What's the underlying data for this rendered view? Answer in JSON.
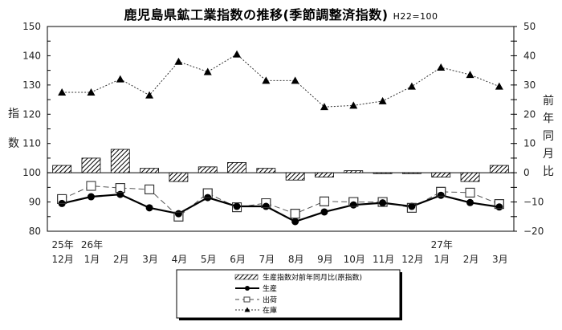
{
  "title": "鹿児島県鉱工業指数の推移(季節調整済指数)",
  "title_note": "H22=100",
  "left_axis_label": [
    "指",
    "数"
  ],
  "right_axis_label": [
    "前",
    "年",
    "同",
    "月",
    "比"
  ],
  "x_year_labels": [
    {
      "index": 0,
      "label": "25年"
    },
    {
      "index": 1,
      "label": "26年"
    },
    {
      "index": 13,
      "label": "27年"
    }
  ],
  "legend": {
    "items": [
      {
        "key": "yoy",
        "label": "生産指数対前年同月比(原指数)"
      },
      {
        "key": "production",
        "label": "生産"
      },
      {
        "key": "shipment",
        "label": "出荷"
      },
      {
        "key": "inventory",
        "label": "在庫"
      }
    ]
  },
  "colors": {
    "line": "#000000",
    "shipment": "#555555",
    "inventory": "#333333",
    "bar_hatch": "#000000"
  },
  "chart_data": {
    "type": "line",
    "title": "鹿児島県鉱工業指数の推移(季節調整済指数) H22=100",
    "categories": [
      "12月",
      "1月",
      "2月",
      "3月",
      "4月",
      "5月",
      "6月",
      "7月",
      "8月",
      "9月",
      "10月",
      "11月",
      "12月",
      "1月",
      "2月",
      "3月"
    ],
    "xlabel": "",
    "ylabel": "指数",
    "y2label": "前年同月比",
    "ylim": [
      80,
      150
    ],
    "y2lim": [
      -20,
      50
    ],
    "yticks": [
      80,
      90,
      100,
      110,
      120,
      130,
      140,
      150
    ],
    "y2ticks": [
      -20,
      -10,
      0,
      10,
      20,
      30,
      40,
      50
    ],
    "grid": false,
    "legend_position": "bottom-center",
    "series": [
      {
        "name": "生産",
        "axis": "left",
        "style": "solid-circle",
        "values": [
          89.5,
          91.8,
          92.6,
          88.0,
          86.0,
          91.5,
          88.5,
          88.5,
          83.3,
          86.6,
          89.0,
          89.7,
          88.5,
          92.3,
          89.8,
          88.3
        ]
      },
      {
        "name": "出荷",
        "axis": "left",
        "style": "dashed-square",
        "values": [
          91.0,
          95.5,
          94.8,
          94.3,
          85.0,
          93.0,
          88.2,
          89.6,
          86.0,
          90.2,
          90.0,
          90.0,
          88.0,
          93.5,
          93.2,
          89.3
        ]
      },
      {
        "name": "在庫",
        "axis": "left",
        "style": "dotted-triangle",
        "values": [
          127.5,
          127.5,
          132.0,
          126.5,
          138.0,
          134.5,
          140.5,
          131.5,
          131.5,
          122.5,
          123.0,
          124.5,
          129.5,
          136.0,
          133.5,
          129.5
        ]
      },
      {
        "name": "生産指数対前年同月比(原指数)",
        "axis": "right",
        "type": "bar",
        "style": "hatched",
        "values": [
          2.5,
          5.0,
          8.0,
          1.5,
          -3.0,
          2.0,
          3.5,
          1.5,
          -2.5,
          -1.5,
          0.7,
          -0.3,
          -0.3,
          -1.5,
          -3.0,
          2.5
        ]
      }
    ]
  }
}
